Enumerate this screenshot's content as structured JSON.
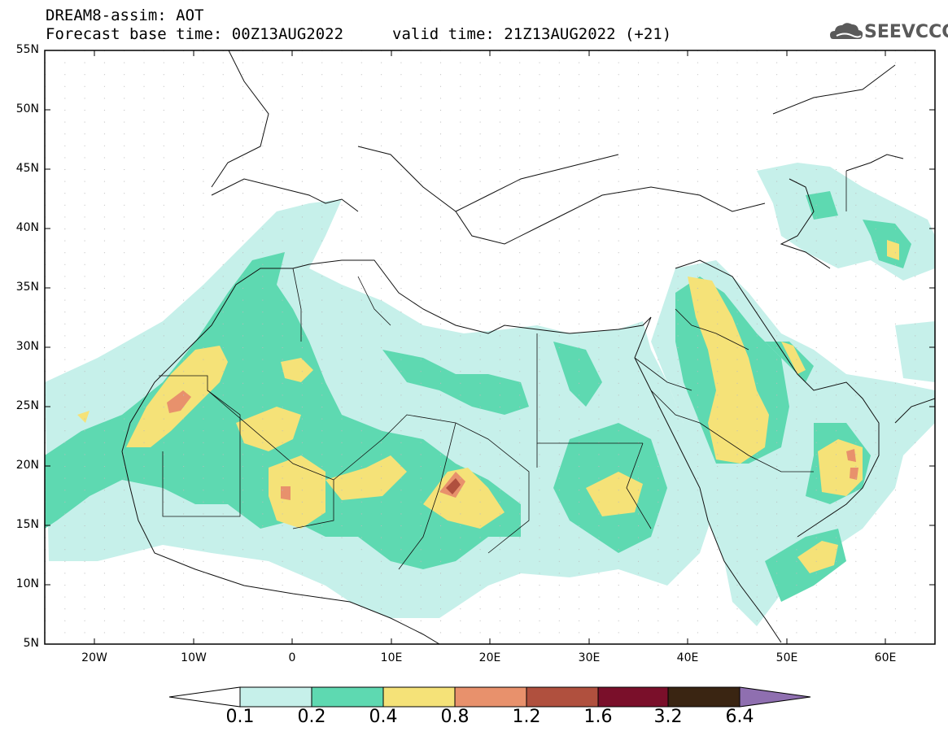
{
  "header": {
    "line1": "DREAM8-assim: AOT",
    "line2": "Forecast base time: 00Z13AUG2022",
    "valid": "valid time: 21Z13AUG2022 (+21)",
    "logo": "SEEVCCC",
    "logo_icon": "cloud-logo-icon"
  },
  "axes": {
    "lat_labels": [
      "55N",
      "50N",
      "45N",
      "40N",
      "35N",
      "30N",
      "25N",
      "20N",
      "15N",
      "10N",
      "5N"
    ],
    "lon_labels": [
      "20W",
      "10W",
      "0",
      "10E",
      "20E",
      "30E",
      "40E",
      "50E",
      "60E"
    ]
  },
  "colorbar": {
    "labels": [
      "0.1",
      "0.2",
      "0.4",
      "0.8",
      "1.2",
      "1.6",
      "3.2",
      "6.4"
    ],
    "colors": [
      "#ffffff",
      "#c6f0ea",
      "#5ed9b1",
      "#f5e278",
      "#e8916c",
      "#b0503e",
      "#7a0f2a",
      "#3a2512",
      "#8f6fb0"
    ]
  },
  "map": {
    "variable": "AOT",
    "colors": {
      "light": "#c6f0ea",
      "mid": "#5ed9b1",
      "high": "#f5e278",
      "higher": "#e8916c",
      "vhigh": "#b0503e"
    }
  }
}
